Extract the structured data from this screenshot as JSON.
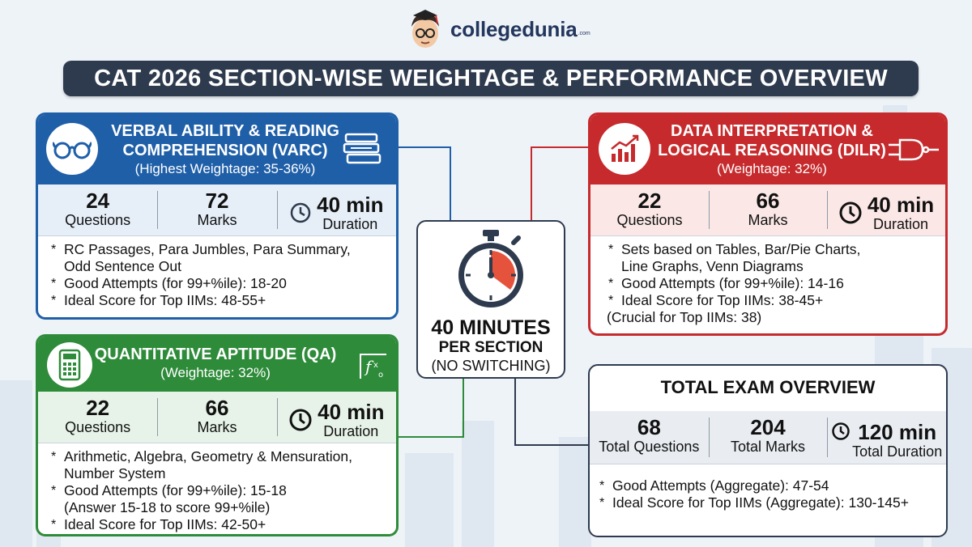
{
  "brand": {
    "name": "collegedunia",
    "suffix": ".com",
    "avatar_icon": "student-avatar-icon"
  },
  "title": "CAT 2026 SECTION-WISE WEIGHTAGE & PERFORMANCE OVERVIEW",
  "colors": {
    "varc": "#1f5fa8",
    "dilr": "#c62a2c",
    "qa": "#2e8b3a",
    "navy": "#2e3b4e"
  },
  "varc": {
    "title_line1": "VERBAL ABILITY & READING",
    "title_line2": "COMPREHENSION (VARC)",
    "subtitle": "(Highest Weightage: 35-36%)",
    "icons": [
      "glasses-icon",
      "books-icon"
    ],
    "questions": "24",
    "questions_label": "Questions",
    "marks": "72",
    "marks_label": "Marks",
    "duration": "40 min",
    "duration_label": "Duration",
    "bullets": [
      "RC Passages, Para Jumbles, Para Summary,",
      "Odd Sentence Out",
      "Good Attempts (for 99+%ile): 18-20",
      "Ideal Score for Top IIMs: 48-55+"
    ]
  },
  "dilr": {
    "title_line1": "DATA INTERPRETATION &",
    "title_line2": "LOGICAL REASONING (DILR)",
    "subtitle": "(Weightage: 32%)",
    "icons": [
      "chart-icon",
      "logic-gate-icon"
    ],
    "questions": "22",
    "questions_label": "Questions",
    "marks": "66",
    "marks_label": "Marks",
    "duration": "40 min",
    "duration_label": "Duration",
    "bullets": [
      "Sets based on Tables, Bar/Pie Charts,",
      "Line Graphs, Venn Diagrams",
      "Good Attempts (for 99+%ile): 14-16",
      "Ideal Score for Top IIMs: 38-45+",
      "(Crucial for Top IIMs: 38)"
    ]
  },
  "qa": {
    "title": "QUANTITATIVE APTITUDE (QA)",
    "subtitle": "(Weightage: 32%)",
    "icons": [
      "calculator-icon",
      "function-icon"
    ],
    "questions": "22",
    "questions_label": "Questions",
    "marks": "66",
    "marks_label": "Marks",
    "duration": "40 min",
    "duration_label": "Duration",
    "bullets": [
      "Arithmetic, Algebra, Geometry & Mensuration,",
      "Number System",
      "Good Attempts (for 99+%ile): 15-18",
      "(Answer 15-18 to score 99+%ile)",
      "Ideal Score for Top IIMs: 42-50+"
    ]
  },
  "timer": {
    "icon": "stopwatch-icon",
    "line1": "40 MINUTES",
    "line2": "PER SECTION",
    "line3": "(NO SWITCHING)"
  },
  "total": {
    "title": "TOTAL EXAM OVERVIEW",
    "questions": "68",
    "questions_label": "Total Questions",
    "marks": "204",
    "marks_label": "Total Marks",
    "duration": "120 min",
    "duration_label": "Total Duration",
    "bullets": [
      "Good Attempts (Aggregate): 47-54",
      "Ideal Score for Top IIMs (Aggregate): 130-145+"
    ]
  },
  "bullet_symbol": "*"
}
